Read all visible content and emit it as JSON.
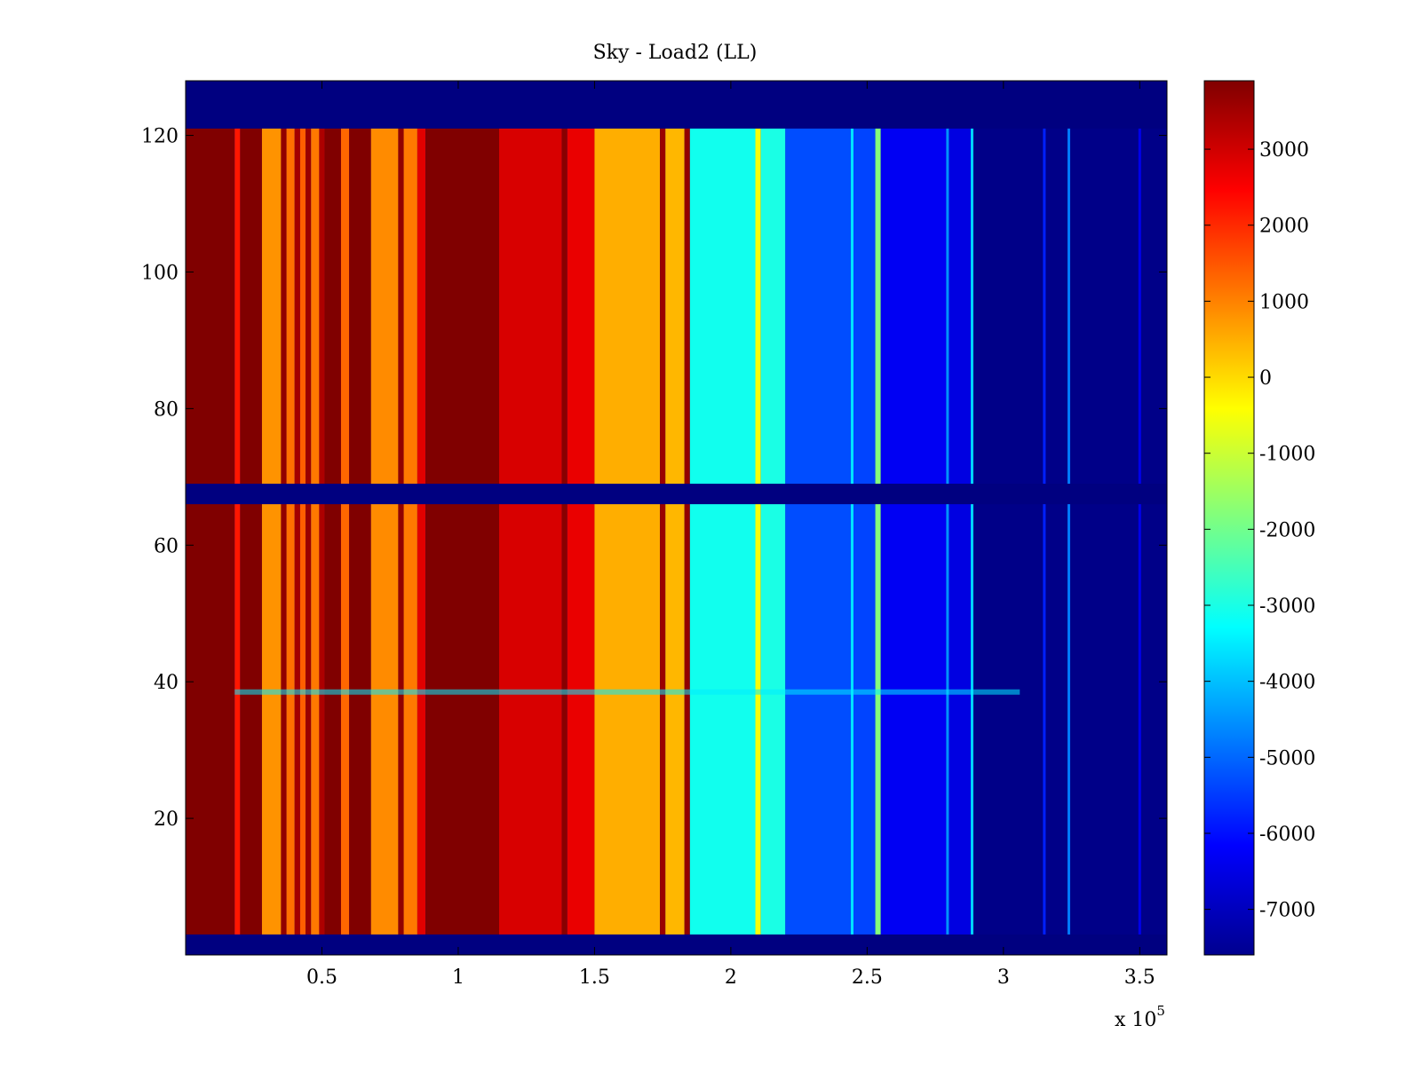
{
  "chart_data": {
    "type": "heatmap",
    "title": "Sky - Load2 (LL)",
    "xlabel": "",
    "ylabel": "",
    "x_multiplier_label": {
      "prefix": "x 10",
      "exponent": "5"
    },
    "xlim": [
      0,
      3.6
    ],
    "ylim": [
      0,
      128
    ],
    "x_ticks": [
      {
        "value": 0.5,
        "label": "0.5"
      },
      {
        "value": 1,
        "label": "1"
      },
      {
        "value": 1.5,
        "label": "1.5"
      },
      {
        "value": 2,
        "label": "2"
      },
      {
        "value": 2.5,
        "label": "2.5"
      },
      {
        "value": 3,
        "label": "3"
      },
      {
        "value": 3.5,
        "label": "3.5"
      }
    ],
    "y_ticks": [
      {
        "value": 20,
        "label": "20"
      },
      {
        "value": 40,
        "label": "40"
      },
      {
        "value": 60,
        "label": "60"
      },
      {
        "value": 80,
        "label": "80"
      },
      {
        "value": 100,
        "label": "100"
      },
      {
        "value": 120,
        "label": "120"
      }
    ],
    "colorbar": {
      "range": [
        -7600,
        3900
      ],
      "colormap": "jet",
      "ticks": [
        {
          "value": 3000,
          "label": "3000"
        },
        {
          "value": 2000,
          "label": "2000"
        },
        {
          "value": 1000,
          "label": "1000"
        },
        {
          "value": 0,
          "label": "0"
        },
        {
          "value": -1000,
          "label": "-1000"
        },
        {
          "value": -2000,
          "label": "-2000"
        },
        {
          "value": -3000,
          "label": "-3000"
        },
        {
          "value": -4000,
          "label": "-4000"
        },
        {
          "value": -5000,
          "label": "-5000"
        },
        {
          "value": -6000,
          "label": "-6000"
        },
        {
          "value": -7000,
          "label": "-7000"
        }
      ]
    },
    "background_value": -7600,
    "blank_row_bands": [
      [
        0,
        3
      ],
      [
        66,
        69
      ],
      [
        121,
        128
      ]
    ],
    "column_segments": [
      {
        "x_start": 0.0,
        "x_end": 0.18,
        "value": 3900
      },
      {
        "x_start": 0.18,
        "x_end": 0.2,
        "value": 2200
      },
      {
        "x_start": 0.2,
        "x_end": 0.28,
        "value": 3900
      },
      {
        "x_start": 0.28,
        "x_end": 0.35,
        "value": 800
      },
      {
        "x_start": 0.35,
        "x_end": 0.37,
        "value": 3700
      },
      {
        "x_start": 0.37,
        "x_end": 0.4,
        "value": 1200
      },
      {
        "x_start": 0.4,
        "x_end": 0.42,
        "value": 3500
      },
      {
        "x_start": 0.42,
        "x_end": 0.44,
        "value": 1400
      },
      {
        "x_start": 0.44,
        "x_end": 0.46,
        "value": 3600
      },
      {
        "x_start": 0.46,
        "x_end": 0.49,
        "value": 1100
      },
      {
        "x_start": 0.49,
        "x_end": 0.51,
        "value": 3400
      },
      {
        "x_start": 0.51,
        "x_end": 0.57,
        "value": 3900
      },
      {
        "x_start": 0.57,
        "x_end": 0.6,
        "value": 1300
      },
      {
        "x_start": 0.6,
        "x_end": 0.68,
        "value": 3900
      },
      {
        "x_start": 0.68,
        "x_end": 0.78,
        "value": 900
      },
      {
        "x_start": 0.78,
        "x_end": 0.8,
        "value": 3700
      },
      {
        "x_start": 0.8,
        "x_end": 0.85,
        "value": 1100
      },
      {
        "x_start": 0.85,
        "x_end": 0.88,
        "value": 2800
      },
      {
        "x_start": 0.88,
        "x_end": 1.15,
        "value": 3900
      },
      {
        "x_start": 1.15,
        "x_end": 1.38,
        "value": 2900
      },
      {
        "x_start": 1.38,
        "x_end": 1.4,
        "value": 3800
      },
      {
        "x_start": 1.4,
        "x_end": 1.5,
        "value": 2700
      },
      {
        "x_start": 1.5,
        "x_end": 1.74,
        "value": 500
      },
      {
        "x_start": 1.74,
        "x_end": 1.76,
        "value": 3600
      },
      {
        "x_start": 1.76,
        "x_end": 1.83,
        "value": 400
      },
      {
        "x_start": 1.83,
        "x_end": 1.85,
        "value": 3700
      },
      {
        "x_start": 1.85,
        "x_end": 2.09,
        "value": -3100
      },
      {
        "x_start": 2.09,
        "x_end": 2.11,
        "value": -500
      },
      {
        "x_start": 2.11,
        "x_end": 2.2,
        "value": -3000
      },
      {
        "x_start": 2.2,
        "x_end": 2.44,
        "value": -5300
      },
      {
        "x_start": 2.44,
        "x_end": 2.45,
        "value": -3600
      },
      {
        "x_start": 2.45,
        "x_end": 2.53,
        "value": -5400
      },
      {
        "x_start": 2.53,
        "x_end": 2.55,
        "value": -1800
      },
      {
        "x_start": 2.55,
        "x_end": 2.79,
        "value": -6300
      },
      {
        "x_start": 2.79,
        "x_end": 2.8,
        "value": -4500
      },
      {
        "x_start": 2.8,
        "x_end": 2.88,
        "value": -6500
      },
      {
        "x_start": 2.88,
        "x_end": 2.89,
        "value": -3800
      },
      {
        "x_start": 2.89,
        "x_end": 3.6,
        "value": -7500
      }
    ],
    "faint_lines": [
      {
        "x": 3.15,
        "value": -5800
      },
      {
        "x": 3.24,
        "value": -4800
      },
      {
        "x": 3.5,
        "value": -6400
      }
    ],
    "highlight_rows": [
      {
        "y": 38.5,
        "description_value": -3500
      }
    ]
  }
}
